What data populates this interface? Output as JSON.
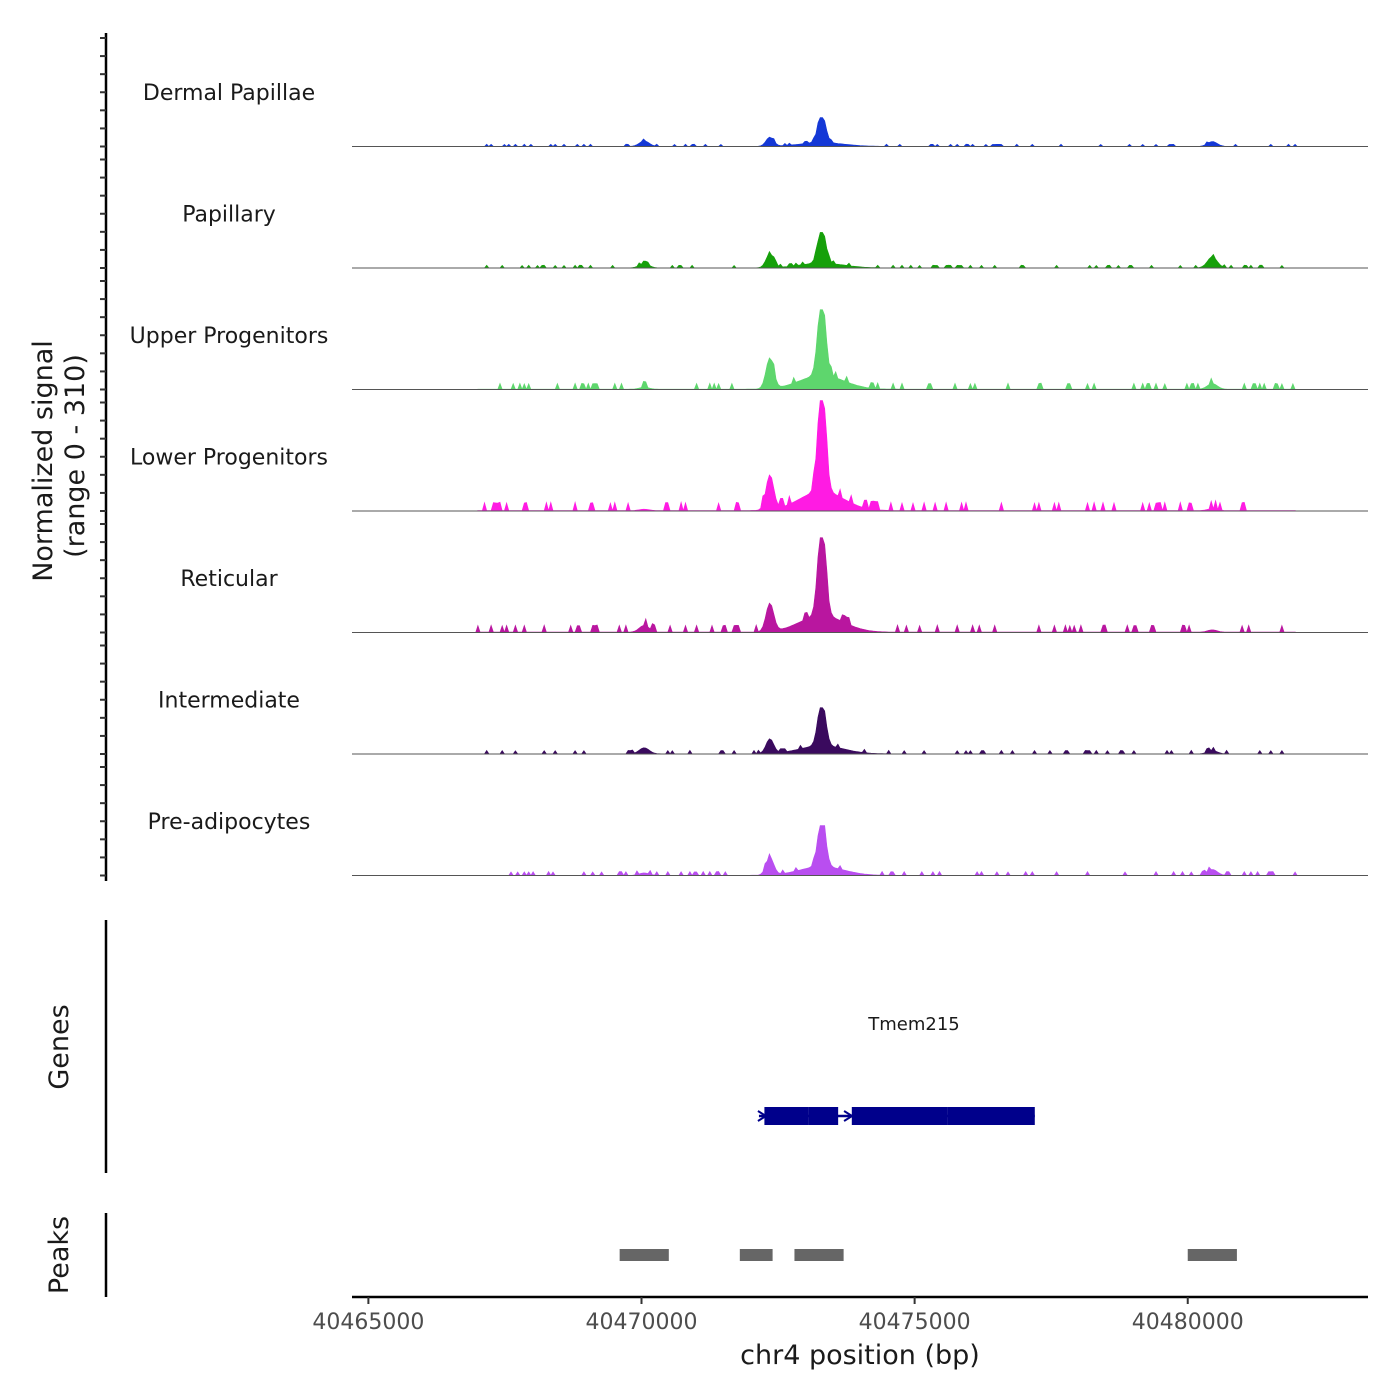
{
  "chart_data": {
    "type": "area",
    "ylabel_line1": "Normalized signal",
    "ylabel_line2": "(range 0 - 310)",
    "y_range": [
      0,
      310
    ],
    "xlabel": "chr4 position (bp)",
    "xlim": [
      40464700,
      40483300
    ],
    "x_ticks": [
      40465000,
      40470000,
      40475000,
      40480000
    ],
    "x_tick_labels": [
      "40465000",
      "40470000",
      "40475000",
      "40480000"
    ],
    "peak_components": [
      {
        "center": 40473300,
        "width": 70,
        "rel": 1.0
      },
      {
        "center": 40473300,
        "width": 400,
        "rel": 0.22
      },
      {
        "center": 40472350,
        "width": 70,
        "rel": 0.35
      },
      {
        "center": 40470050,
        "width": 90,
        "rel": 0.12
      },
      {
        "center": 40480450,
        "width": 90,
        "rel": 0.12
      }
    ],
    "tracks": [
      {
        "name": "Dermal Papillae",
        "color": "#1438d6",
        "max": 81,
        "scales": [
          1.0,
          0.6,
          0.9,
          1.6,
          1.4
        ]
      },
      {
        "name": "Papillary",
        "color": "#16a00a",
        "max": 100,
        "scales": [
          1.0,
          0.6,
          1.1,
          1.0,
          2.6
        ]
      },
      {
        "name": "Upper Progenitors",
        "color": "#5ed66d",
        "max": 224,
        "scales": [
          1.0,
          0.8,
          1.1,
          0.2,
          0.6
        ]
      },
      {
        "name": "Lower Progenitors",
        "color": "#ff1be3",
        "max": 310,
        "scales": [
          1.0,
          0.8,
          0.9,
          0.1,
          0.15
        ]
      },
      {
        "name": "Reticular",
        "color": "#b9169f",
        "max": 266,
        "scales": [
          1.0,
          0.8,
          0.85,
          0.6,
          0.2
        ]
      },
      {
        "name": "Intermediate",
        "color": "#3a0a5e",
        "max": 130,
        "scales": [
          1.0,
          0.8,
          0.9,
          1.1,
          0.6
        ]
      },
      {
        "name": "Pre-adipocytes",
        "color": "#b94ef0",
        "max": 140,
        "scales": [
          1.0,
          0.8,
          1.0,
          0.4,
          1.0
        ]
      }
    ],
    "genes": {
      "title": "Genes",
      "gene_name": "Tmem215",
      "color": "#00008b",
      "start": 40472150,
      "end": 40477200,
      "exons": [
        [
          40472250,
          40473050
        ],
        [
          40473050,
          40473600
        ],
        [
          40473850,
          40475600
        ],
        [
          40475600,
          40477200
        ]
      ]
    },
    "peaks": {
      "title": "Peaks",
      "color": "#666666",
      "regions": [
        [
          40469600,
          40470500
        ],
        [
          40471800,
          40472400
        ],
        [
          40472800,
          40473700
        ],
        [
          40480000,
          40480900
        ]
      ]
    }
  }
}
